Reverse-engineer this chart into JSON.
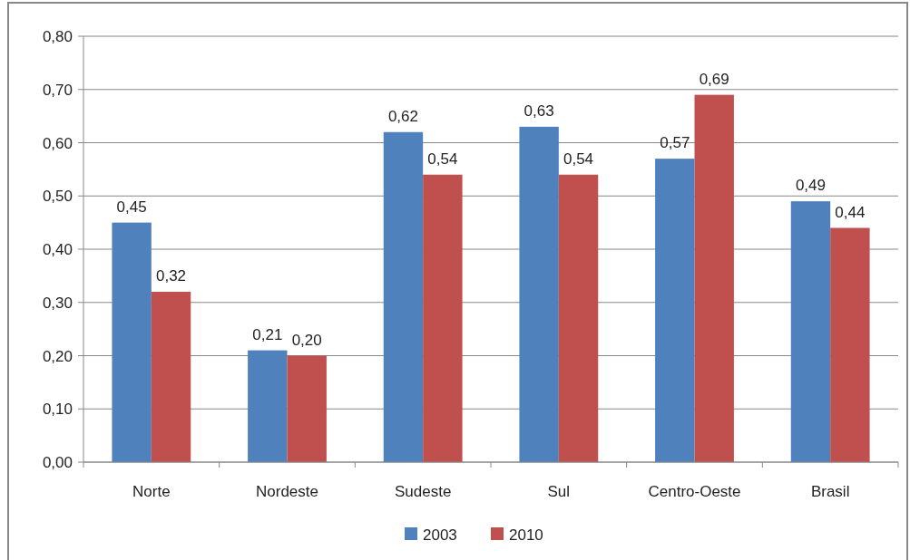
{
  "chart_data": {
    "type": "bar",
    "categories": [
      "Norte",
      "Nordeste",
      "Sudeste",
      "Sul",
      "Centro-Oeste",
      "Brasil"
    ],
    "series": [
      {
        "name": "2003",
        "color": "#4f81bd",
        "values": [
          0.45,
          0.21,
          0.62,
          0.63,
          0.57,
          0.49
        ],
        "value_labels": [
          "0,45",
          "0,21",
          "0,62",
          "0,63",
          "0,57",
          "0,49"
        ]
      },
      {
        "name": "2010",
        "color": "#c0504d",
        "values": [
          0.32,
          0.2,
          0.54,
          0.54,
          0.69,
          0.44
        ],
        "value_labels": [
          "0,32",
          "0,20",
          "0,54",
          "0,54",
          "0,69",
          "0,44"
        ]
      }
    ],
    "ylim": [
      0,
      0.8
    ],
    "yticks": [
      {
        "value": 0,
        "label": "0,00"
      },
      {
        "value": 0.1,
        "label": "0,10"
      },
      {
        "value": 0.2,
        "label": "0,20"
      },
      {
        "value": 0.3,
        "label": "0,30"
      },
      {
        "value": 0.4,
        "label": "0,40"
      },
      {
        "value": 0.5,
        "label": "0,50"
      },
      {
        "value": 0.6,
        "label": "0,60"
      },
      {
        "value": 0.7,
        "label": "0,70"
      },
      {
        "value": 0.8,
        "label": "0,80"
      }
    ],
    "grid": "y",
    "legend": "bottom"
  }
}
